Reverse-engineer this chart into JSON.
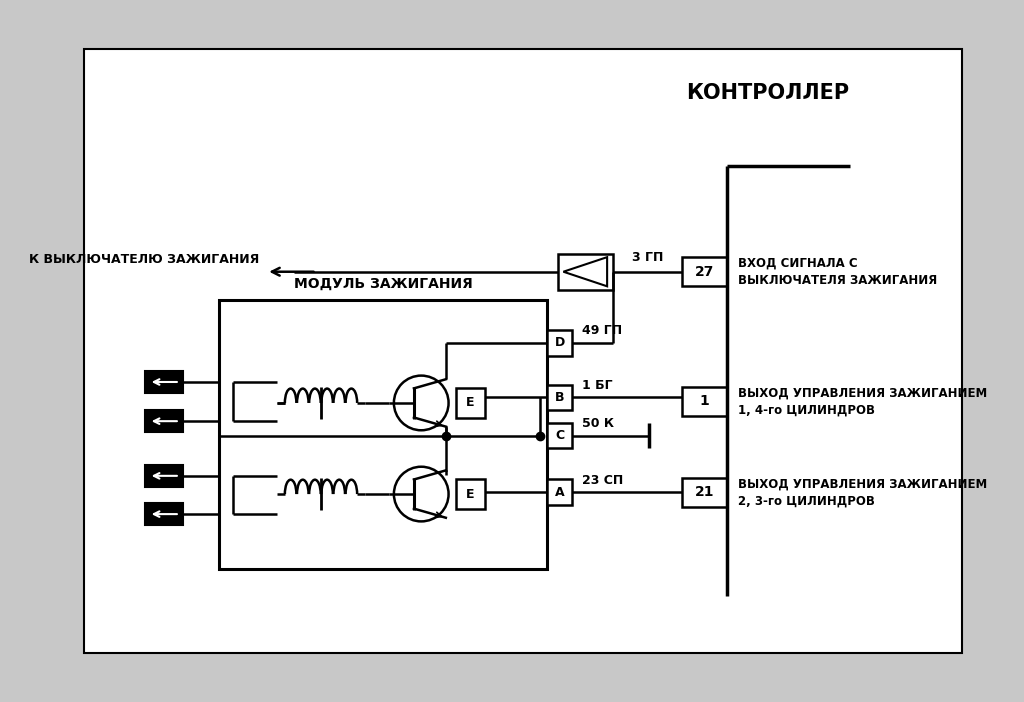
{
  "title": "КОНТРОЛЛЕР",
  "module_label": "МОДУЛЬ ЗАЖИГАНИЯ",
  "switch_label": "К ВЫКЛЮЧАТЕЛЮ ЗАЖИГАНИЯ",
  "bg_color": "#c8c8c8",
  "white_bg": "#ffffff",
  "line_color": "#000000",
  "d_label": "49 ГП",
  "b_label": "1 БГ",
  "c_label": "50 К",
  "a_label": "23 СП",
  "top_label": "3 ГП",
  "pin27_num": "27",
  "pin27_desc": "ВХОД СИГНАЛА С\nВЫКЛЮЧАТЕЛЯ ЗАЖИГАНИЯ",
  "pin1_num": "1",
  "pin1_desc": "ВЫХОД УПРАВЛЕНИЯ ЗАЖИГАНИЕМ\n1, 4-го ЦИЛИНДРОВ",
  "pin21_num": "21",
  "pin21_desc": "ВЫХОД УПРАВЛЕНИЯ ЗАЖИГАНИЕМ\n2, 3-го ЦИЛИНДРОВ"
}
